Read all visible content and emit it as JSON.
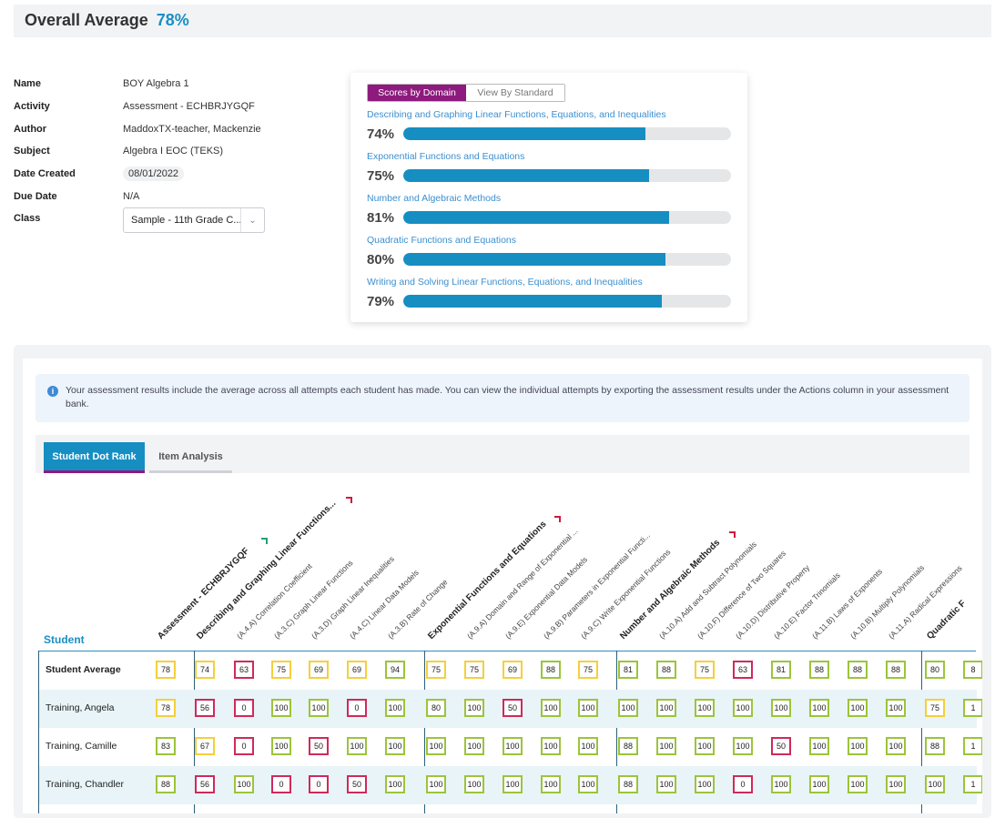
{
  "header": {
    "label": "Overall Average",
    "value": "78%"
  },
  "info": [
    {
      "key": "Name",
      "value": "BOY Algebra 1"
    },
    {
      "key": "Activity",
      "value": "Assessment - ECHBRJYGQF"
    },
    {
      "key": "Author",
      "value": "MaddoxTX-teacher, Mackenzie"
    },
    {
      "key": "Subject",
      "value": "Algebra I EOC (TEKS)"
    },
    {
      "key": "Date Created",
      "value": "08/01/2022"
    },
    {
      "key": "Due Date",
      "value": "N/A"
    },
    {
      "key": "Class",
      "value": ""
    }
  ],
  "class_select": {
    "value": "Sample - 11th Grade C..."
  },
  "domain_card": {
    "toggle_active": "Scores by Domain",
    "toggle_inactive": "View By Standard",
    "domains": [
      {
        "name": "Describing and Graphing Linear Functions, Equations, and Inequalities",
        "pct_label": "74%",
        "value": 74
      },
      {
        "name": "Exponential Functions and Equations",
        "pct_label": "75%",
        "value": 75
      },
      {
        "name": "Number and Algebraic Methods",
        "pct_label": "81%",
        "value": 81
      },
      {
        "name": "Quadratic Functions and Equations",
        "pct_label": "80%",
        "value": 80
      },
      {
        "name": "Writing and Solving Linear Functions, Equations, and Inequalities",
        "pct_label": "79%",
        "value": 79
      }
    ]
  },
  "notice": {
    "text": "Your assessment results include the average across all attempts each student has made. You can view the individual attempts by exporting the assessment results under the Actions column in your assessment bank."
  },
  "tabs": {
    "active": "Student Dot Rank",
    "inactive": "Item Analysis"
  },
  "grid": {
    "student_header": "Student",
    "columns": [
      {
        "label": "Assessment - ECHBRJYGQF",
        "kind": "assess"
      },
      {
        "label": "Describing and Graphing Linear Functions...",
        "kind": "domain"
      },
      {
        "label": "(A.4.A) Correlation Coefficient",
        "kind": "std"
      },
      {
        "label": "(A.3.C) Graph Linear Functions",
        "kind": "std"
      },
      {
        "label": "(A.3.D) Graph Linear Inequalities",
        "kind": "std"
      },
      {
        "label": "(A.4.C) Linear Data Models",
        "kind": "std"
      },
      {
        "label": "(A.3.B) Rate of Change",
        "kind": "std"
      },
      {
        "label": "Exponential Functions and Equations",
        "kind": "domain"
      },
      {
        "label": "(A.9.A) Domain and Range of Exponential ...",
        "kind": "std"
      },
      {
        "label": "(A.9.E) Exponential Data Models",
        "kind": "std"
      },
      {
        "label": "(A.9.B) Parameters in Exponential Functi...",
        "kind": "std"
      },
      {
        "label": "(A.9.C) Write Exponential Functions",
        "kind": "std"
      },
      {
        "label": "Number and Algebraic Methods",
        "kind": "domain"
      },
      {
        "label": "(A.10.A) Add and Subtract Polynomials",
        "kind": "std"
      },
      {
        "label": "(A.10.F) Difference of Two Squares",
        "kind": "std"
      },
      {
        "label": "(A.10.D) Distributive Property",
        "kind": "std"
      },
      {
        "label": "(A.10.E) Factor Trinomials",
        "kind": "std"
      },
      {
        "label": "(A.11.B) Laws of Exponents",
        "kind": "std"
      },
      {
        "label": "(A.10.B) Multiply Polynomials",
        "kind": "std"
      },
      {
        "label": "(A.11.A) Radical Expressions",
        "kind": "std"
      },
      {
        "label": "Quadratic F",
        "kind": "domain"
      },
      {
        "label": "",
        "kind": "std"
      }
    ],
    "rows": [
      {
        "name": "Student Average",
        "bold": true,
        "scores": [
          "78",
          "74",
          "63",
          "75",
          "69",
          "69",
          "94",
          "75",
          "75",
          "69",
          "88",
          "75",
          "81",
          "88",
          "75",
          "63",
          "81",
          "88",
          "88",
          "88",
          "80",
          "8"
        ],
        "levels": [
          "y",
          "y",
          "r",
          "y",
          "y",
          "y",
          "g",
          "y",
          "y",
          "y",
          "g",
          "y",
          "g",
          "g",
          "y",
          "r",
          "g",
          "g",
          "g",
          "g",
          "g",
          "g"
        ]
      },
      {
        "name": "Training, Angela",
        "bold": false,
        "scores": [
          "78",
          "56",
          "0",
          "100",
          "100",
          "0",
          "100",
          "80",
          "100",
          "50",
          "100",
          "100",
          "100",
          "100",
          "100",
          "100",
          "100",
          "100",
          "100",
          "100",
          "75",
          "1"
        ],
        "levels": [
          "y",
          "r",
          "r",
          "g",
          "g",
          "r",
          "g",
          "g",
          "g",
          "r",
          "g",
          "g",
          "g",
          "g",
          "g",
          "g",
          "g",
          "g",
          "g",
          "g",
          "y",
          "g"
        ]
      },
      {
        "name": "Training, Camille",
        "bold": false,
        "scores": [
          "83",
          "67",
          "0",
          "100",
          "50",
          "100",
          "100",
          "100",
          "100",
          "100",
          "100",
          "100",
          "88",
          "100",
          "100",
          "100",
          "50",
          "100",
          "100",
          "100",
          "88",
          "1"
        ],
        "levels": [
          "g",
          "y",
          "r",
          "g",
          "r",
          "g",
          "g",
          "g",
          "g",
          "g",
          "g",
          "g",
          "g",
          "g",
          "g",
          "g",
          "r",
          "g",
          "g",
          "g",
          "g",
          "g"
        ]
      },
      {
        "name": "Training, Chandler",
        "bold": false,
        "scores": [
          "88",
          "56",
          "100",
          "0",
          "0",
          "50",
          "100",
          "100",
          "100",
          "100",
          "100",
          "100",
          "88",
          "100",
          "100",
          "0",
          "100",
          "100",
          "100",
          "100",
          "100",
          "1"
        ],
        "levels": [
          "g",
          "r",
          "g",
          "r",
          "r",
          "r",
          "g",
          "g",
          "g",
          "g",
          "g",
          "g",
          "g",
          "g",
          "g",
          "r",
          "g",
          "g",
          "g",
          "g",
          "g",
          "g"
        ]
      }
    ]
  }
}
